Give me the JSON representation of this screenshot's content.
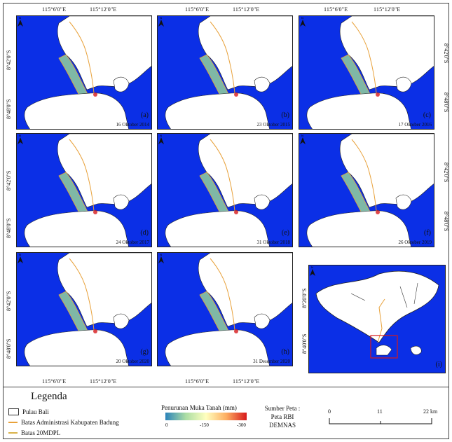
{
  "axes": {
    "top_lon": [
      "115°6'0\"E",
      "115°12'0\"E"
    ],
    "bottom_lon": [
      "115°6'0\"E",
      "115°12'0\"E"
    ],
    "lat": [
      "8°42'0\"S",
      "8°48'0\"S"
    ]
  },
  "panels": [
    {
      "label": "(a)",
      "date": "16 Oktober 2014"
    },
    {
      "label": "(b)",
      "date": "23 Oktober 2015"
    },
    {
      "label": "(c)",
      "date": "17 Oktober 2016"
    },
    {
      "label": "(d)",
      "date": "24 Oktober 2017"
    },
    {
      "label": "(e)",
      "date": "31 Oktober 2018"
    },
    {
      "label": "(f)",
      "date": "26 Oktober 2019"
    },
    {
      "label": "(g)",
      "date": "20 Oktober 2020"
    },
    {
      "label": "(h)",
      "date": "31 Desember 2020"
    },
    {
      "label": "(i)",
      "date": ""
    }
  ],
  "inset_lat": [
    "8°20'0\"S",
    "8°40'0\"S"
  ],
  "legend": {
    "title": "Legenda",
    "items": [
      {
        "label": "Pulau Bali",
        "type": "box"
      },
      {
        "label": "Batas Administrasi Kabupaten Badung",
        "type": "line",
        "color": "#e8a13a"
      },
      {
        "label": "Batas 20MDPL",
        "type": "line",
        "color": "#d9b24a"
      }
    ],
    "ramp_title": "Penurunan Muka Tanah (mm)",
    "ramp_ticks": [
      "0",
      "-150",
      "-300"
    ],
    "source": [
      "Sumber Peta :",
      "Peta RBI",
      "DEMNAS"
    ],
    "scale_ticks": [
      "0",
      "11",
      "22 km"
    ]
  },
  "colors": {
    "sea": "#0b2fe6",
    "land": "#ffffff",
    "boundary": "#e8a13a",
    "subsidence_low": "#7fb8a6",
    "subsidence_high": "#d7191c"
  }
}
